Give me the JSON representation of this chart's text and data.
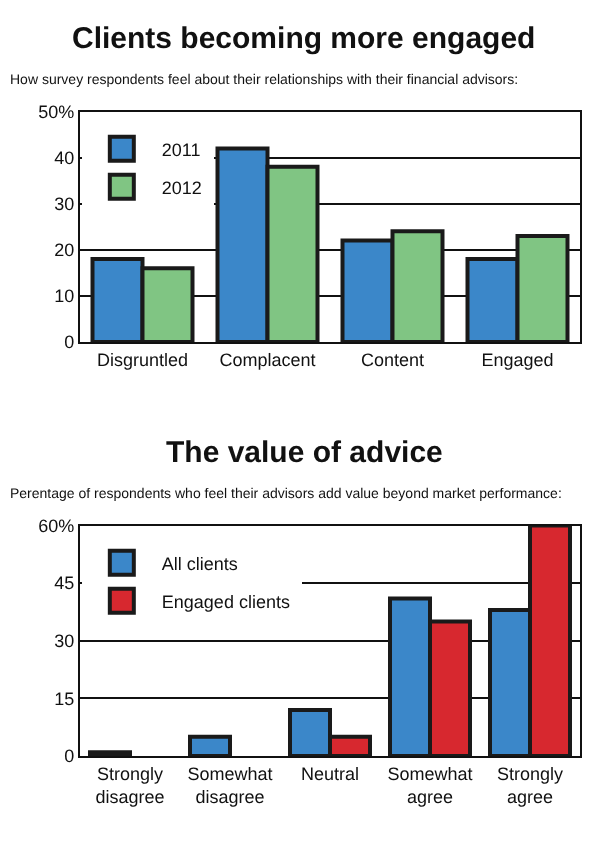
{
  "chart_data": [
    {
      "type": "bar",
      "title": "Clients becoming more engaged",
      "subtitle": "How survey respondents feel about their relationships with their financial advisors:",
      "categories": [
        "Disgruntled",
        "Complacent",
        "Content",
        "Engaged"
      ],
      "series": [
        {
          "name": "2011",
          "color": "#3b87c9",
          "values": [
            18,
            42,
            22,
            18
          ]
        },
        {
          "name": "2012",
          "color": "#80c583",
          "values": [
            16,
            38,
            24,
            23
          ]
        }
      ],
      "ylim": [
        0,
        50
      ],
      "yticks": [
        0,
        10,
        20,
        30,
        40,
        {
          "value": 50,
          "label": "50%"
        }
      ],
      "grid": "y",
      "legend": "top left"
    },
    {
      "type": "bar",
      "title": "The value of advice",
      "subtitle": "Perentage of respondents who feel their advisors add value beyond market performance:",
      "categories": [
        "Strongly disagree",
        "Somewhat disagree",
        "Neutral",
        "Somewhat agree",
        "Strongly agree"
      ],
      "series": [
        {
          "name": "All clients",
          "color": "#3b87c9",
          "values": [
            1,
            5,
            12,
            41,
            38
          ]
        },
        {
          "name": "Engaged clients",
          "color": "#d7282f",
          "values": [
            null,
            null,
            5,
            35,
            60
          ]
        }
      ],
      "ylim": [
        0,
        60
      ],
      "yticks": [
        0,
        15,
        30,
        45,
        {
          "value": 60,
          "label": "60%"
        }
      ],
      "grid": "y",
      "legend": "top left"
    }
  ]
}
